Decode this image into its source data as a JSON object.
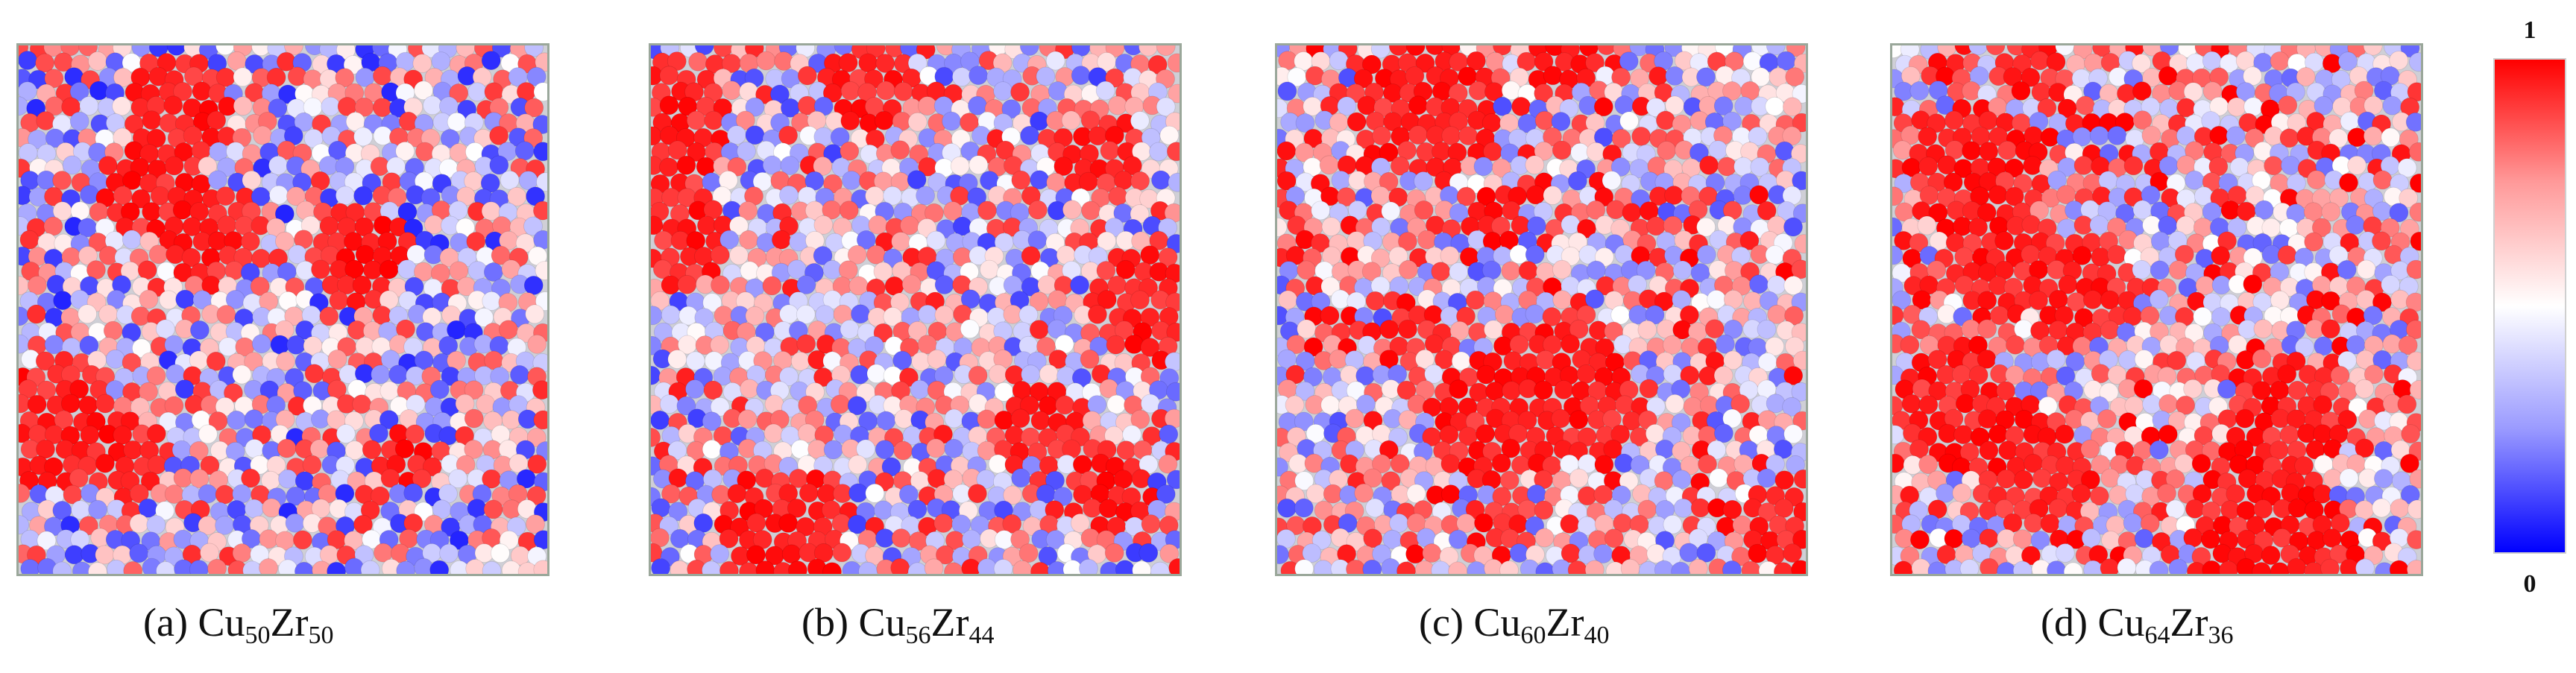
{
  "panels": [
    {
      "id": "a",
      "caption_prefix": "(a) ",
      "el1": "Cu",
      "sub1": "50",
      "el2": "Zr",
      "sub2": "50",
      "seed": 11,
      "red_fraction": 0.48
    },
    {
      "id": "b",
      "caption_prefix": "(b) ",
      "el1": "Cu",
      "sub1": "56",
      "el2": "Zr",
      "sub2": "44",
      "seed": 29,
      "red_fraction": 0.56
    },
    {
      "id": "c",
      "caption_prefix": "(c) ",
      "el1": "Cu",
      "sub1": "60",
      "el2": "Zr",
      "sub2": "40",
      "seed": 47,
      "red_fraction": 0.62
    },
    {
      "id": "d",
      "caption_prefix": "(d) ",
      "el1": "Cu",
      "sub1": "64",
      "el2": "Zr",
      "sub2": "36",
      "seed": 83,
      "red_fraction": 0.68
    }
  ],
  "colorbar": {
    "max_label": "1",
    "min_label": "0",
    "high_color": "#ff0000",
    "mid_color": "#ffffff",
    "low_color": "#0000ff"
  }
}
